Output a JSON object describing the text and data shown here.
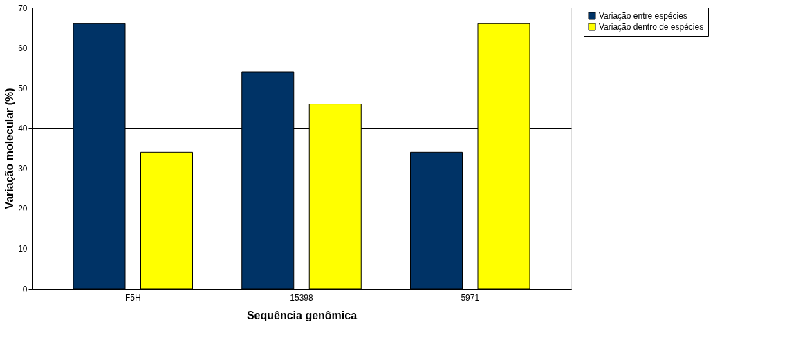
{
  "chart_data": {
    "type": "bar",
    "xlabel": "Sequência genômica",
    "ylabel": "Variação molecular (%)",
    "categories": [
      "F5H",
      "15398",
      "5971"
    ],
    "series": [
      {
        "name": "Variação entre espécies",
        "color": "#003366",
        "values": [
          66,
          54,
          34
        ]
      },
      {
        "name": "Variação dentro de espécies",
        "color": "#ffff00",
        "values": [
          34,
          46,
          66
        ]
      }
    ],
    "ylim": [
      0,
      70
    ],
    "yticks": [
      0,
      10,
      20,
      30,
      40,
      50,
      60,
      70
    ],
    "grid": "y",
    "legend": "right"
  }
}
